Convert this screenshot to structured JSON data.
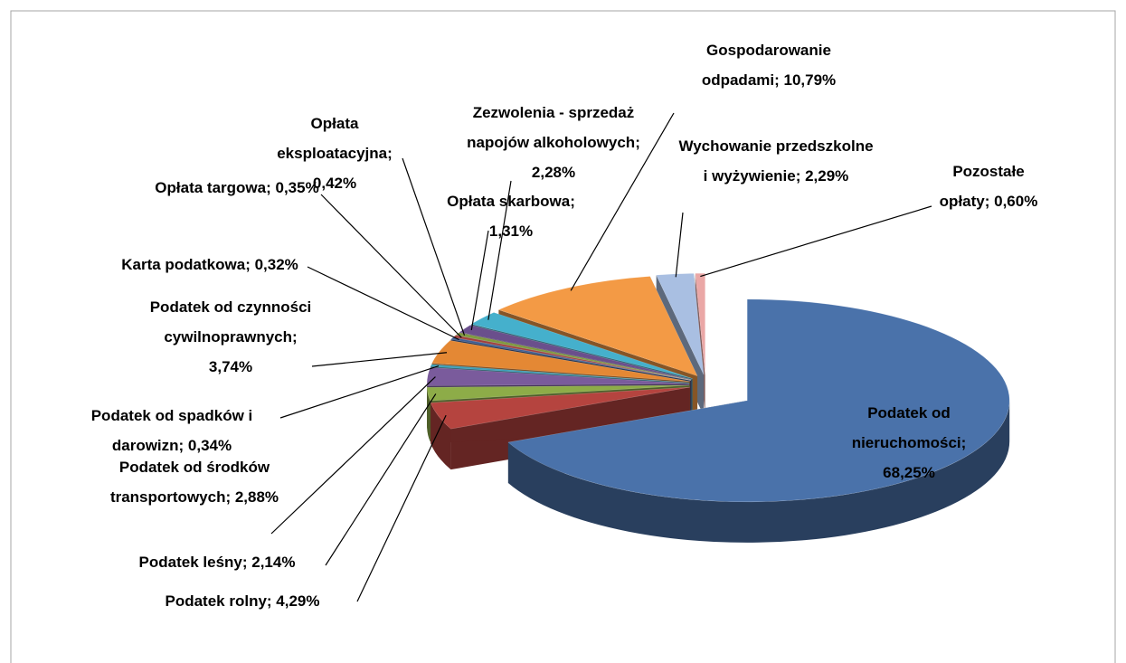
{
  "chart_data": {
    "type": "pie",
    "values": [
      68.25,
      4.29,
      2.14,
      2.88,
      0.34,
      3.74,
      0.32,
      0.35,
      0.42,
      1.31,
      2.28,
      10.79,
      2.29,
      0.6
    ],
    "value_labels": [
      "Podatek od nieruchomości; 68,25%",
      "Podatek rolny; 4,29%",
      "Podatek leśny; 2,14%",
      "Podatek od środków transportowych; 2,88%",
      "Podatek od spadków i darowizn; 0,34%",
      "Podatek od czynności cywilnoprawnych; 3,74%",
      "Karta podatkowa; 0,32%",
      "Opłata targowa; 0,35%",
      "Opłata eksploatacyjna; 0,42%",
      "Opłata skarbowa; 1,31%",
      "Zezwolenia - sprzedaż napojów alkoholowych; 2,28%",
      "Gospodarowanie odpadami; 10,79%",
      "Wychowanie przedszkolne i wyżywienie; 2,29%",
      "Pozostałe opłaty; 0,60%"
    ],
    "colors": [
      "#4a72aa",
      "#b5443f",
      "#8dac48",
      "#7a5b9c",
      "#3d9fb8",
      "#e48834",
      "#3f5f95",
      "#a23f3c",
      "#7f9a3e",
      "#6a4f8c",
      "#45b0cc",
      "#f39a45",
      "#a9bfe2",
      "#eaa7a6"
    ]
  }
}
